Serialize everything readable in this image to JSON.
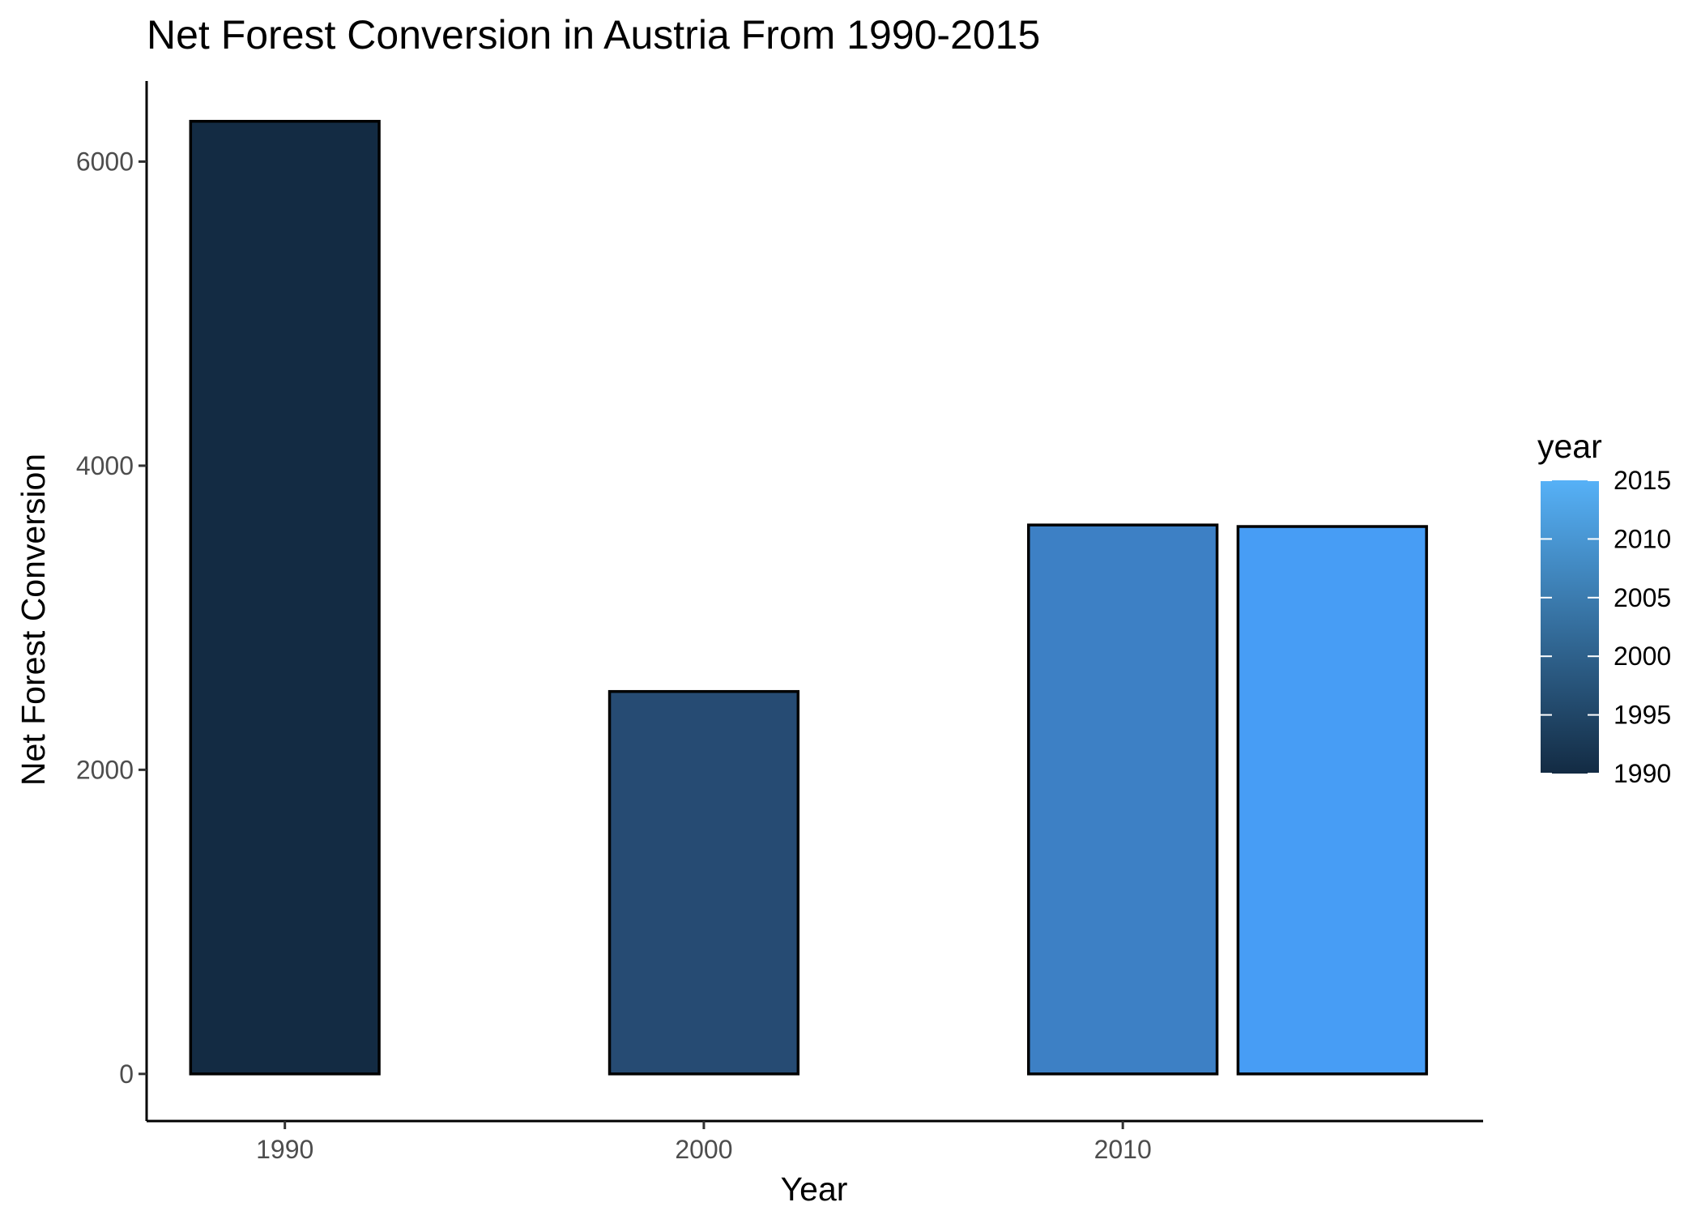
{
  "chart_data": {
    "type": "bar",
    "title": "Net Forest Conversion in Austria From 1990-2015",
    "xlabel": "Year",
    "ylabel": "Net Forest Conversion",
    "x": [
      1990,
      2000,
      2010,
      2015
    ],
    "values": [
      6265,
      2515,
      3610,
      3600
    ],
    "x_ticks": [
      1990,
      2000,
      2010
    ],
    "y_ticks": [
      0,
      2000,
      4000,
      6000
    ],
    "xlim": [
      1986.7,
      2018.6
    ],
    "ylim": [
      -310,
      6530
    ],
    "bar_width_years": 4.5,
    "bar_outline": "#000000",
    "grid": false,
    "legend": {
      "title": "year",
      "placement": "right",
      "type": "continuous colorbar",
      "breaks": [
        2015,
        2010,
        2005,
        2000,
        1995,
        1990
      ],
      "range": [
        1990,
        2015
      ],
      "color_low": "#132B43",
      "color_high": "#56B1F7"
    },
    "colors": {
      "bar_1990": "#132B43",
      "bar_2000": "#264B73",
      "bar_2010": "#3D80C5",
      "bar_2015": "#479DF5"
    }
  }
}
